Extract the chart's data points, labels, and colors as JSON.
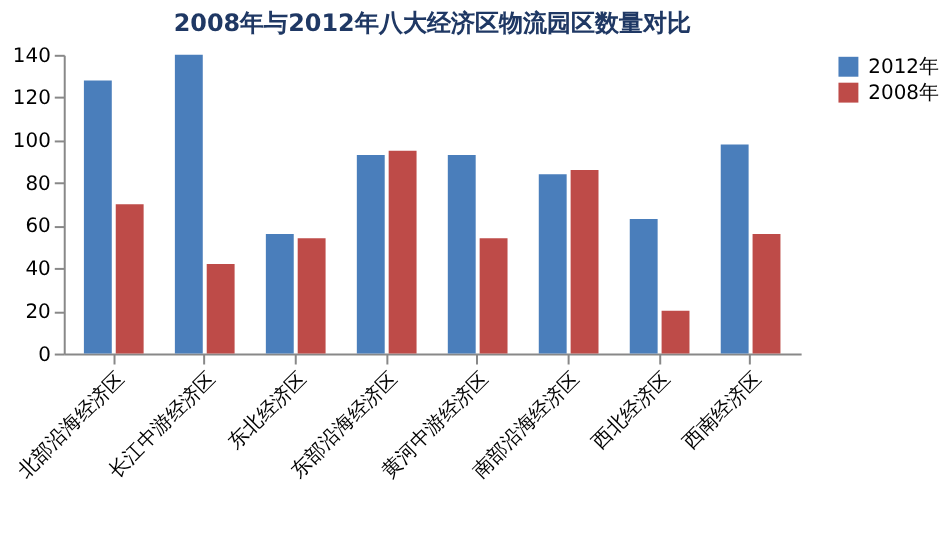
{
  "chart_data": {
    "type": "bar",
    "title": "2008年与2012年八大经济区物流园区数量对比",
    "categories": [
      "北部沿海经济区",
      "长江中游经济区",
      "东北经济区",
      "东部沿海经济区",
      "黄河中游经济区",
      "南部沿海经济区",
      "西北经济区",
      "西南经济区"
    ],
    "series": [
      {
        "name": "2012年",
        "color": "#4a7ebb",
        "values": [
          128,
          140,
          56,
          93,
          93,
          84,
          63,
          98
        ]
      },
      {
        "name": "2008年",
        "color": "#be4b48",
        "values": [
          70,
          42,
          54,
          95,
          54,
          86,
          20,
          56
        ]
      }
    ],
    "ylim": [
      0,
      140
    ],
    "yticks": [
      0,
      20,
      40,
      60,
      80,
      100,
      120,
      140
    ],
    "grid": false,
    "legend": "right"
  }
}
